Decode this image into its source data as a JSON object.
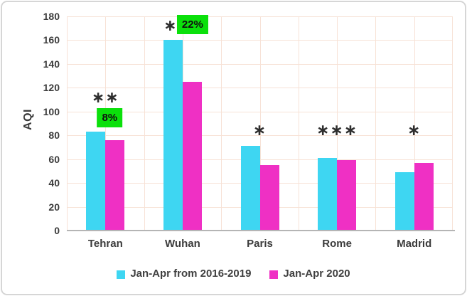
{
  "chart_data": {
    "type": "bar",
    "title": "",
    "ylabel": "AQI",
    "categories": [
      "Tehran",
      "Wuhan",
      "Paris",
      "Rome",
      "Madrid"
    ],
    "series": [
      {
        "name": "Jan-Apr from 2016-2019",
        "color": "#3ed6f2",
        "values": [
          83,
          160,
          71,
          61,
          49
        ]
      },
      {
        "name": "Jan-Apr 2020",
        "color": "#ef30c4",
        "values": [
          76,
          125,
          55,
          59,
          57
        ]
      }
    ],
    "ylim": [
      0,
      180
    ],
    "ytick_step": 20,
    "yticks": [
      0,
      20,
      40,
      60,
      80,
      100,
      120,
      140,
      160,
      180
    ],
    "grid": {
      "horizontal": true,
      "vertical": true,
      "color": "#f7e2d6"
    },
    "axis_line_color": "#b5b5b5",
    "legend_position": "bottom",
    "annotations": [
      {
        "category": "Tehran",
        "stars": "**",
        "pct_label": "8%",
        "style": "stars-above-box"
      },
      {
        "category": "Wuhan",
        "stars": "*",
        "pct_label": "22%",
        "style": "star-left-of-box"
      },
      {
        "category": "Paris",
        "stars": "*",
        "style": "stars-above-bar"
      },
      {
        "category": "Rome",
        "stars": "***",
        "style": "stars-above-bar"
      },
      {
        "category": "Madrid",
        "stars": "*",
        "style": "stars-above-bar"
      }
    ],
    "annotation_colors": {
      "highlight_bg": "#0be00b",
      "star_color": "#2e2e2e"
    }
  }
}
